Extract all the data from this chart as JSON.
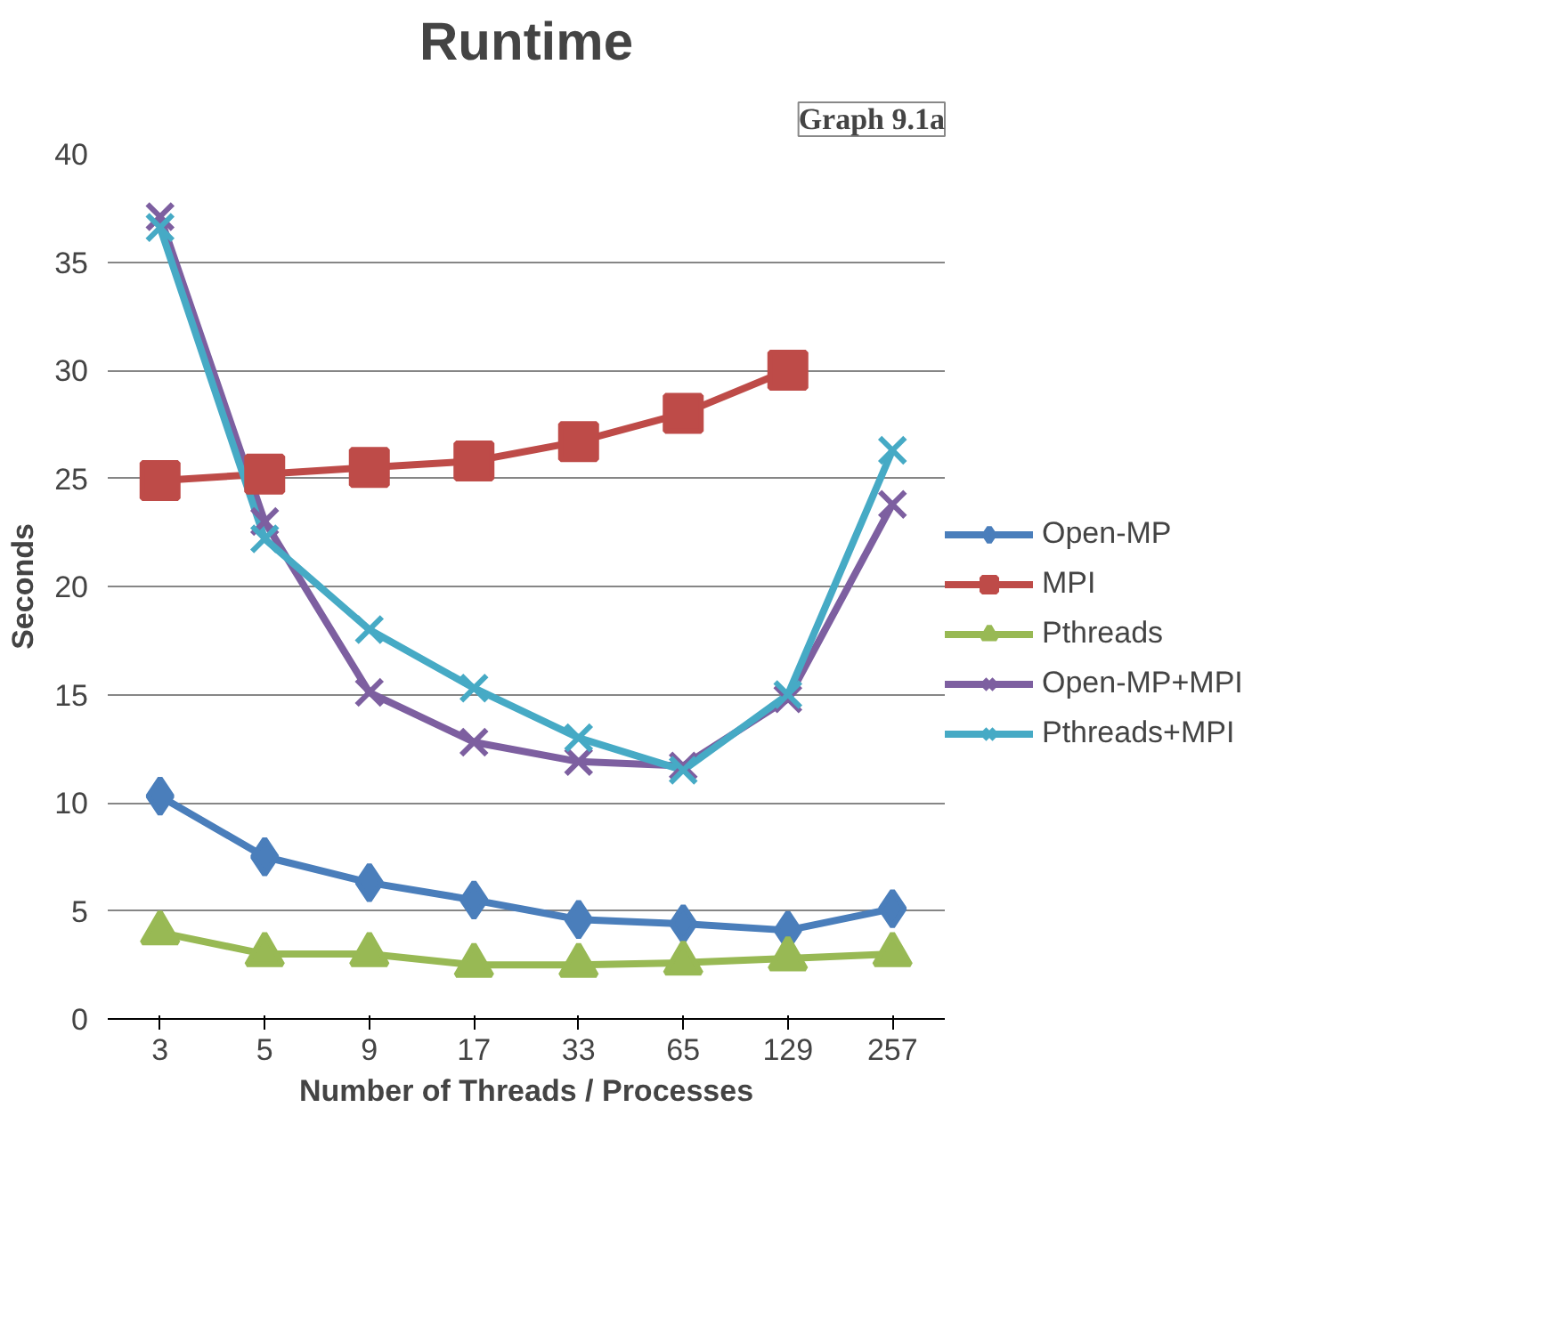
{
  "chart_data": {
    "type": "line",
    "title": "Runtime",
    "xlabel": "Number of Threads / Processes",
    "ylabel": "Seconds",
    "categories": [
      "3",
      "5",
      "9",
      "17",
      "33",
      "65",
      "129",
      "257"
    ],
    "series": [
      {
        "name": "Open-MP",
        "color": "#4a7ebb",
        "marker": "diamond",
        "values": [
          10.3,
          7.5,
          6.3,
          5.5,
          4.6,
          4.4,
          4.1,
          5.1
        ]
      },
      {
        "name": "MPI",
        "color": "#be4b48",
        "marker": "square",
        "values": [
          24.9,
          25.2,
          25.5,
          25.8,
          26.7,
          28.0,
          30.0,
          null
        ]
      },
      {
        "name": "Pthreads",
        "color": "#98b954",
        "marker": "triangle",
        "values": [
          4.0,
          3.0,
          3.0,
          2.5,
          2.5,
          2.6,
          2.8,
          3.0
        ]
      },
      {
        "name": "Open-MP+MPI",
        "color": "#7d5fa0",
        "marker": "cross",
        "values": [
          37.1,
          23.0,
          15.1,
          12.8,
          11.9,
          11.7,
          14.8,
          23.8
        ]
      },
      {
        "name": "Pthreads+MPI",
        "color": "#46aac5",
        "marker": "cross",
        "values": [
          36.6,
          22.2,
          18.0,
          15.3,
          13.0,
          11.5,
          15.0,
          26.3
        ]
      }
    ],
    "ylim": [
      0,
      40
    ],
    "yticks": [
      0,
      5,
      10,
      15,
      20,
      25,
      30,
      35,
      40
    ],
    "grid": "y",
    "legend": "right",
    "line_style": "solid",
    "annotations": [
      "Graph 9.1a"
    ]
  }
}
